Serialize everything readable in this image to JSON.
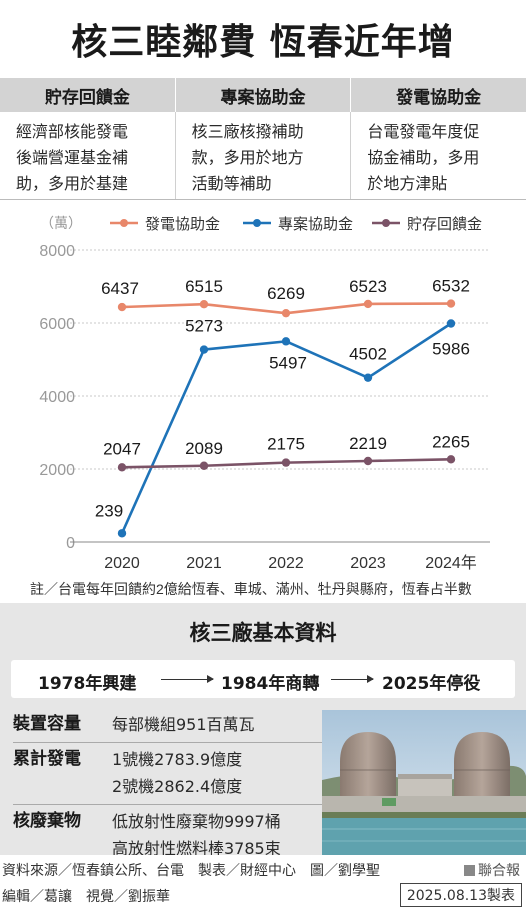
{
  "header": {
    "title": "核三睦鄰費  恆春近年增"
  },
  "funds": [
    {
      "name": "貯存回饋金",
      "lines": [
        "經濟部核能發電",
        "後端營運基金補",
        "助，多用於基建"
      ]
    },
    {
      "name": "專案協助金",
      "lines": [
        "核三廠核撥補助",
        "款，多用於地方",
        "活動等補助"
      ]
    },
    {
      "name": "發電協助金",
      "lines": [
        "台電發電年度促",
        "協金補助，多用",
        "於地方津貼"
      ]
    }
  ],
  "chart_data": {
    "type": "line",
    "unit": "（萬）",
    "categories": [
      "2020",
      "2021",
      "2022",
      "2023",
      "2024年"
    ],
    "ylim": [
      0,
      8000
    ],
    "yticks": [
      "0",
      "2000",
      "4000",
      "6000",
      "8000"
    ],
    "legend_position": "top",
    "series": [
      {
        "name": "發電協助金",
        "color": "#e8876a",
        "values": [
          6437,
          6515,
          6269,
          6523,
          6532
        ]
      },
      {
        "name": "專案協助金",
        "color": "#1e73b8",
        "values": [
          239,
          5273,
          5497,
          4502,
          5986
        ]
      },
      {
        "name": "貯存回饋金",
        "color": "#7b5367",
        "values": [
          2047,
          2089,
          2175,
          2219,
          2265
        ]
      }
    ],
    "note": "註／台電每年回饋約2億給恆春、車城、滿州、牡丹與縣府，恆春占半數"
  },
  "colors": {
    "grid": "#c8c8c8",
    "axis": "#888888",
    "basic_bg": "#e6e6e6"
  },
  "basic": {
    "title": "核三廠基本資料",
    "timeline": [
      "1978年興建",
      "1984年商轉",
      "2025年停役"
    ],
    "facts": [
      {
        "label": "裝置容量",
        "values": [
          "每部機組951百萬瓦"
        ]
      },
      {
        "label": "累計發電",
        "values": [
          "1號機2783.9億度",
          "2號機2862.4億度"
        ]
      },
      {
        "label": "核廢棄物",
        "values": [
          "低放射性廢棄物9997桶",
          "高放射性燃料棒3785束"
        ]
      }
    ]
  },
  "footer": {
    "source": "資料來源／恆春鎮公所、台電　製表／財經中心　圖／劉學聖",
    "brand": "聯合報",
    "editors": "編輯／葛讓　視覺／劉振華",
    "date": "2025.08.13製表"
  }
}
